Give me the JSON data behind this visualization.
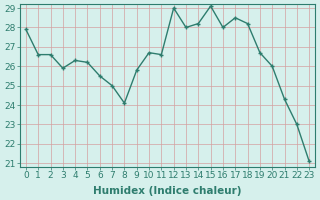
{
  "x": [
    0,
    1,
    2,
    3,
    4,
    5,
    6,
    7,
    8,
    9,
    10,
    11,
    12,
    13,
    14,
    15,
    16,
    17,
    18,
    19,
    20,
    21,
    22,
    23
  ],
  "y": [
    27.9,
    26.6,
    26.6,
    25.9,
    26.3,
    26.2,
    25.5,
    25.0,
    24.1,
    25.8,
    26.7,
    26.6,
    29.0,
    28.0,
    28.2,
    29.1,
    28.0,
    28.5,
    28.2,
    26.7,
    26.0,
    24.3,
    23.0,
    21.1
  ],
  "line_color": "#2e7d6e",
  "marker_color": "#2e7d6e",
  "bg_color": "#d6f0ec",
  "grid_color": "#d4a0a0",
  "axis_color": "#2e7d6e",
  "spine_color": "#2e7d6e",
  "xlabel": "Humidex (Indice chaleur)",
  "ylim_min": 21,
  "ylim_max": 29,
  "xlim_min": 0,
  "xlim_max": 23,
  "yticks": [
    21,
    22,
    23,
    24,
    25,
    26,
    27,
    28,
    29
  ],
  "xticks": [
    0,
    1,
    2,
    3,
    4,
    5,
    6,
    7,
    8,
    9,
    10,
    11,
    12,
    13,
    14,
    15,
    16,
    17,
    18,
    19,
    20,
    21,
    22,
    23
  ],
  "xlabel_fontsize": 7.5,
  "tick_fontsize": 6.5,
  "linewidth": 1.0,
  "markersize": 3,
  "grid_linewidth": 0.5
}
